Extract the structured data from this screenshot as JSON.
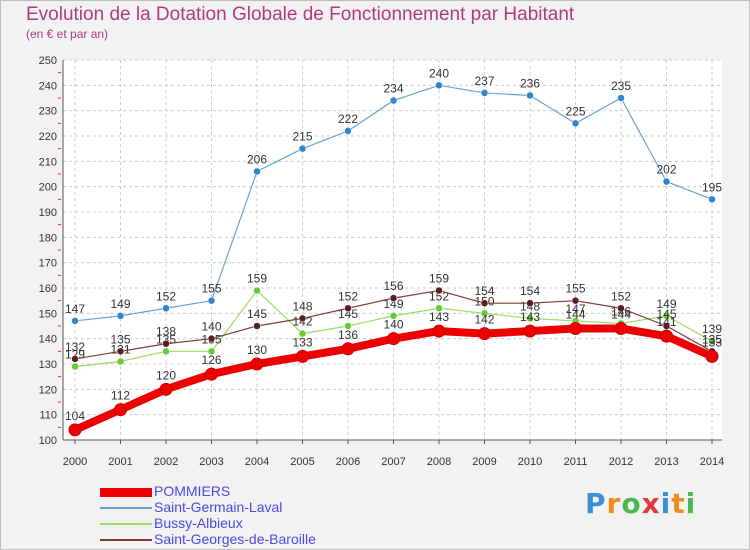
{
  "chart_data": {
    "type": "line",
    "title": "Evolution de la Dotation Globale de Fonctionnement par Habitant",
    "subtitle": "(en € et par an)",
    "xlabel": "",
    "ylabel": "",
    "categories": [
      "2000",
      "2001",
      "2002",
      "2003",
      "2004",
      "2005",
      "2006",
      "2007",
      "2008",
      "2009",
      "2010",
      "2011",
      "2012",
      "2013",
      "2014"
    ],
    "ylim": [
      100,
      250
    ],
    "ytick_step": 10,
    "yticks": [
      "100",
      "110",
      "120",
      "130",
      "140",
      "150",
      "160",
      "170",
      "180",
      "190",
      "200",
      "210",
      "220",
      "230",
      "240",
      "250"
    ],
    "grid": true,
    "legend_position": "bottom-left",
    "series": [
      {
        "name": "POMMIERS",
        "values": [
          104,
          112,
          120,
          126,
          130,
          133,
          136,
          140,
          143,
          142,
          143,
          144,
          144,
          141,
          133
        ],
        "color": "#ee0000",
        "marker": "#ee0000",
        "emphasis": "thick"
      },
      {
        "name": "Saint-Germain-Laval",
        "values": [
          147,
          149,
          152,
          155,
          206,
          215,
          222,
          234,
          240,
          237,
          236,
          225,
          235,
          202,
          195
        ],
        "color": "#6aa2d6",
        "marker": "#2f86c8",
        "emphasis": "normal"
      },
      {
        "name": "Bussy-Albieux",
        "values": [
          129,
          131,
          135,
          135,
          159,
          142,
          145,
          149,
          152,
          150,
          148,
          147,
          146,
          149,
          139
        ],
        "color": "#99dd66",
        "marker": "#66cc33",
        "emphasis": "normal"
      },
      {
        "name": "Saint-Georges-de-Baroille",
        "values": [
          132,
          135,
          138,
          140,
          145,
          148,
          152,
          156,
          159,
          154,
          154,
          155,
          152,
          145,
          135
        ],
        "color": "#7a3b3b",
        "marker": "#5a1f1f",
        "emphasis": "normal"
      }
    ]
  },
  "logo": {
    "letters": [
      "P",
      "r",
      "o",
      "x",
      "i",
      "t",
      "i"
    ],
    "colors": [
      "#3a8fd8",
      "#f08a1c",
      "#4cb84c",
      "#e23b3b",
      "#3a8fd8",
      "#f08a1c",
      "#4cb84c"
    ]
  }
}
